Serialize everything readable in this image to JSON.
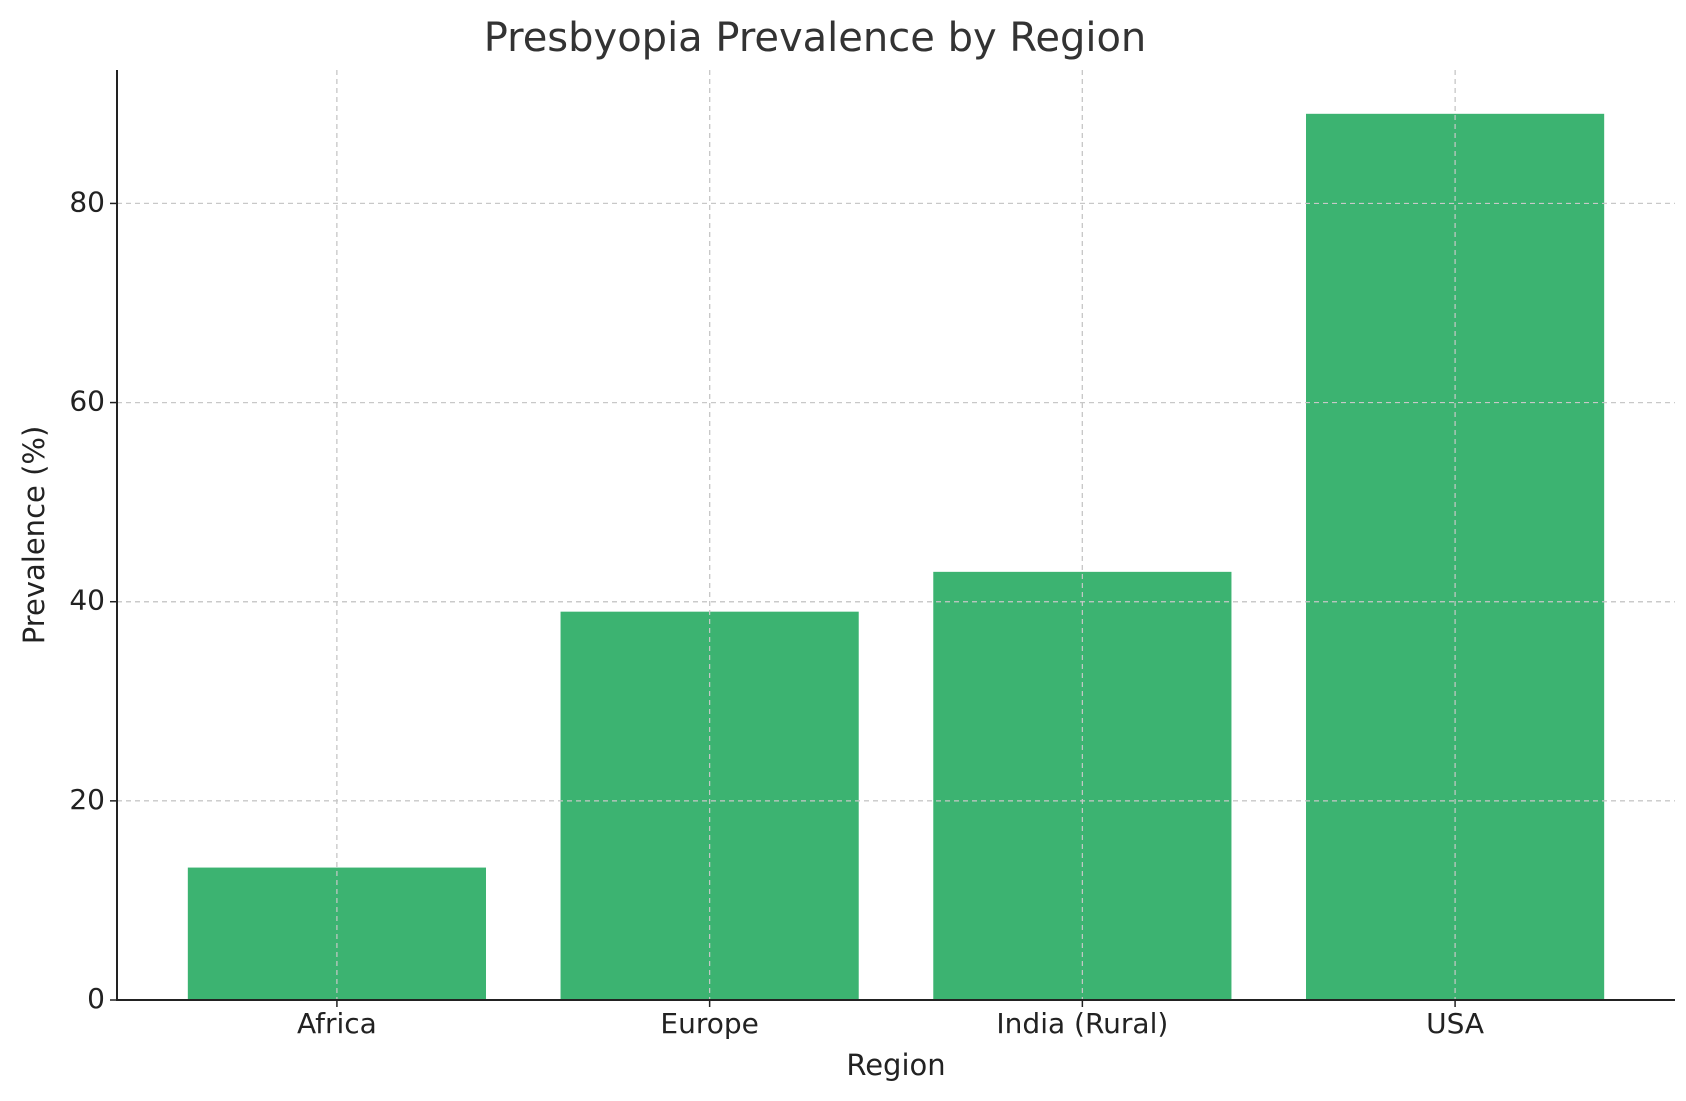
{
  "chart_data": {
    "type": "bar",
    "title": "Presbyopia Prevalence by Region",
    "x_label": "Region",
    "y_label": "Prevalence (%)",
    "categories": [
      "Africa",
      "Europe",
      "India (Rural)",
      "USA"
    ],
    "values": [
      13.3,
      39,
      43,
      89
    ],
    "color": "#3cb371",
    "ylim": [
      0,
      93.4
    ],
    "yticks": [
      0,
      20,
      40,
      60,
      80
    ],
    "grid": true
  }
}
